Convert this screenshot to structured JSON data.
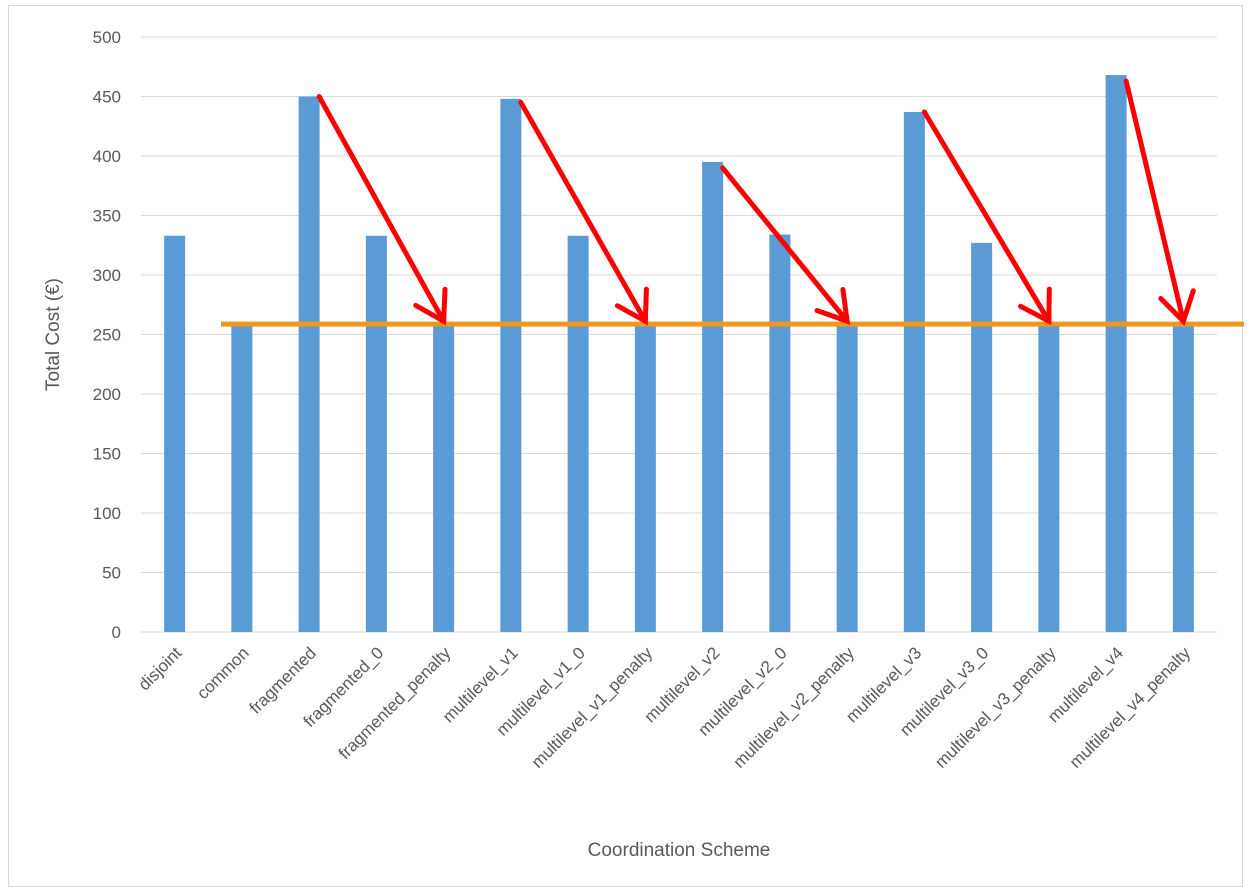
{
  "chart_data": {
    "type": "bar",
    "title": "",
    "xlabel": "Coordination Scheme",
    "ylabel": "Total Cost (€)",
    "ylim": [
      0,
      500
    ],
    "yticks": [
      0,
      50,
      100,
      150,
      200,
      250,
      300,
      350,
      400,
      450,
      500
    ],
    "grid": true,
    "categories": [
      "disjoint",
      "common",
      "fragmented",
      "fragmented_0",
      "fragmented_penalty",
      "multilevel_v1",
      "multilevel_v1_0",
      "multilevel_v1_penalty",
      "multilevel_v2",
      "multilevel_v2_0",
      "multilevel_v2_penalty",
      "multilevel_v3",
      "multilevel_v3_0",
      "multilevel_v3_penalty",
      "multilevel_v4",
      "multilevel_v4_penalty"
    ],
    "values": [
      333,
      257,
      450,
      333,
      257,
      448,
      333,
      257,
      395,
      334,
      257,
      437,
      327,
      257,
      468,
      257
    ],
    "bar_color": "#5b9bd5",
    "reference_line": {
      "value": 257,
      "color": "#f0961e"
    },
    "arrows": {
      "color": "#ff0000",
      "pairs": [
        {
          "from": 2,
          "to": 4,
          "from_value": 450
        },
        {
          "from": 5,
          "to": 7,
          "from_value": 445
        },
        {
          "from": 8,
          "to": 10,
          "from_value": 390
        },
        {
          "from": 11,
          "to": 13,
          "from_value": 437
        },
        {
          "from": 14,
          "to": 15,
          "from_value": 463
        }
      ]
    }
  }
}
